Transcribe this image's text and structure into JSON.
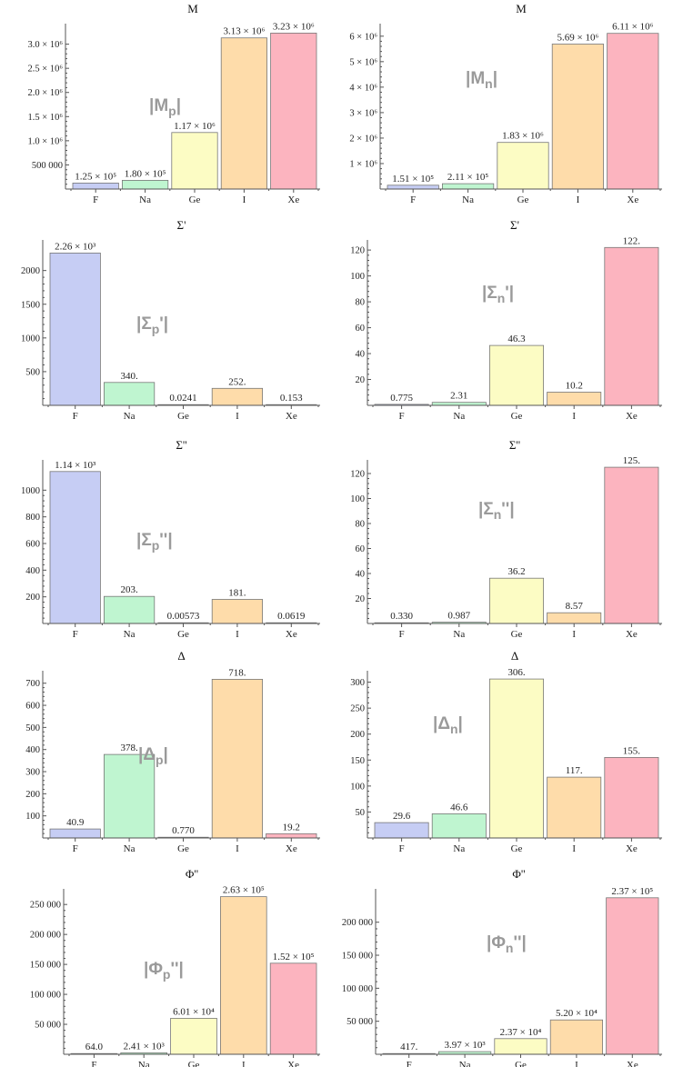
{
  "colors": {
    "F": "#c6cdf4",
    "Na": "#bff5d0",
    "Ge": "#fcfcc4",
    "I": "#fedcaa",
    "Xe": "#fcb4bf"
  },
  "chart_data": [
    {
      "type": "bar",
      "title": "M",
      "inset": {
        "main": "|M",
        "sub": "p",
        "end": "|"
      },
      "categories": [
        "F",
        "Na",
        "Ge",
        "I",
        "Xe"
      ],
      "values": [
        125000,
        180000,
        1170000,
        3130000,
        3230000
      ],
      "labels": [
        "1.25 × 10⁵",
        "1.80 × 10⁵",
        "1.17 × 10⁶",
        "3.13 × 10⁶",
        "3.23 × 10⁶"
      ],
      "ylim": [
        0,
        3350000
      ],
      "yticks": [
        500000,
        1000000,
        1500000,
        2000000,
        2500000,
        3000000
      ],
      "ytick_labels": [
        "500 000",
        "1.0 × 10⁶",
        "1.5 × 10⁶",
        "2.0 × 10⁶",
        "2.5 × 10⁶",
        "3.0 × 10⁶"
      ]
    },
    {
      "type": "bar",
      "title": "M",
      "inset": {
        "main": "|M",
        "sub": "n",
        "end": "|"
      },
      "categories": [
        "F",
        "Na",
        "Ge",
        "I",
        "Xe"
      ],
      "values": [
        151000,
        211000,
        1830000,
        5690000,
        6110000
      ],
      "labels": [
        "1.51 × 10⁵",
        "2.11 × 10⁵",
        "1.83 × 10⁶",
        "5.69 × 10⁶",
        "6.11 × 10⁶"
      ],
      "ylim": [
        0,
        6350000
      ],
      "yticks": [
        1000000,
        2000000,
        3000000,
        4000000,
        5000000,
        6000000
      ],
      "ytick_labels": [
        "1 × 10⁶",
        "2 × 10⁶",
        "3 × 10⁶",
        "4 × 10⁶",
        "5 × 10⁶",
        "6 × 10⁶"
      ]
    },
    {
      "type": "bar",
      "title": "Σ'",
      "inset": {
        "main": "|Σ",
        "sub": "p",
        "end": "'|"
      },
      "categories": [
        "F",
        "Na",
        "Ge",
        "I",
        "Xe"
      ],
      "values": [
        2260,
        340,
        0.0241,
        252,
        0.153
      ],
      "labels": [
        "2.26 × 10³",
        "340.",
        "0.0241",
        "252.",
        "0.153"
      ],
      "ylim": [
        0,
        2400
      ],
      "yticks": [
        500,
        1000,
        1500,
        2000
      ],
      "ytick_labels": [
        "500",
        "1000",
        "1500",
        "2000"
      ]
    },
    {
      "type": "bar",
      "title": "Σ'",
      "inset": {
        "main": "|Σ",
        "sub": "n",
        "end": "'|"
      },
      "categories": [
        "F",
        "Na",
        "Ge",
        "I",
        "Xe"
      ],
      "values": [
        0.775,
        2.31,
        46.3,
        10.2,
        122
      ],
      "labels": [
        "0.775",
        "2.31",
        "46.3",
        "10.2",
        "122."
      ],
      "ylim": [
        0,
        125
      ],
      "yticks": [
        20,
        40,
        60,
        80,
        100,
        120
      ],
      "ytick_labels": [
        "20",
        "40",
        "60",
        "80",
        "100",
        "120"
      ]
    },
    {
      "type": "bar",
      "title": "Σ''",
      "inset": {
        "main": "|Σ",
        "sub": "p",
        "end": "''|"
      },
      "categories": [
        "F",
        "Na",
        "Ge",
        "I",
        "Xe"
      ],
      "values": [
        1140,
        203,
        0.00573,
        181,
        0.0619
      ],
      "labels": [
        "1.14 × 10³",
        "203.",
        "0.00573",
        "181.",
        "0.0619"
      ],
      "ylim": [
        0,
        1200
      ],
      "yticks": [
        200,
        400,
        600,
        800,
        1000
      ],
      "ytick_labels": [
        "200",
        "400",
        "600",
        "800",
        "1000"
      ]
    },
    {
      "type": "bar",
      "title": "Σ''",
      "inset": {
        "main": "|Σ",
        "sub": "n",
        "end": "''|"
      },
      "categories": [
        "F",
        "Na",
        "Ge",
        "I",
        "Xe"
      ],
      "values": [
        0.33,
        0.987,
        36.2,
        8.57,
        125
      ],
      "labels": [
        "0.330",
        "0.987",
        "36.2",
        "8.57",
        "125."
      ],
      "ylim": [
        0,
        128
      ],
      "yticks": [
        20,
        40,
        60,
        80,
        100,
        120
      ],
      "ytick_labels": [
        "20",
        "40",
        "60",
        "80",
        "100",
        "120"
      ]
    },
    {
      "type": "bar",
      "title": "Δ",
      "inset": {
        "main": "|Δ",
        "sub": "p",
        "end": "|"
      },
      "categories": [
        "F",
        "Na",
        "Ge",
        "I",
        "Xe"
      ],
      "values": [
        40.9,
        378,
        0.77,
        718,
        19.2
      ],
      "labels": [
        "40.9",
        "378.",
        "0.770",
        "718.",
        "19.2"
      ],
      "ylim": [
        0,
        740
      ],
      "yticks": [
        100,
        200,
        300,
        400,
        500,
        600,
        700
      ],
      "ytick_labels": [
        "100",
        "200",
        "300",
        "400",
        "500",
        "600",
        "700"
      ]
    },
    {
      "type": "bar",
      "title": "Δ",
      "inset": {
        "main": "|Δ",
        "sub": "n",
        "end": "|"
      },
      "categories": [
        "F",
        "Na",
        "Ge",
        "I",
        "Xe"
      ],
      "values": [
        29.6,
        46.6,
        306,
        117,
        155
      ],
      "labels": [
        "29.6",
        "46.6",
        "306.",
        "117.",
        "155."
      ],
      "ylim": [
        0,
        315
      ],
      "yticks": [
        50,
        100,
        150,
        200,
        250,
        300
      ],
      "ytick_labels": [
        "50",
        "100",
        "150",
        "200",
        "250",
        "300"
      ]
    },
    {
      "type": "bar",
      "title": "Φ''",
      "inset": {
        "main": "|Φ",
        "sub": "p",
        "end": "''|"
      },
      "categories": [
        "F",
        "Na",
        "Ge",
        "I",
        "Xe"
      ],
      "values": [
        64.0,
        2410,
        60100,
        263000,
        152000
      ],
      "labels": [
        "64.0",
        "2.41 × 10³",
        "6.01 × 10⁴",
        "2.63 × 10⁵",
        "1.52 × 10⁵"
      ],
      "ylim": [
        0,
        270000
      ],
      "yticks": [
        50000,
        100000,
        150000,
        200000,
        250000
      ],
      "ytick_labels": [
        "50 000",
        "100 000",
        "150 000",
        "200 000",
        "250 000"
      ]
    },
    {
      "type": "bar",
      "title": "Φ''",
      "inset": {
        "main": "|Φ",
        "sub": "n",
        "end": "''|"
      },
      "categories": [
        "F",
        "Na",
        "Ge",
        "I",
        "Xe"
      ],
      "values": [
        417,
        3970,
        23700,
        52000,
        237000
      ],
      "labels": [
        "417.",
        "3.97 × 10³",
        "2.37 × 10⁴",
        "5.20 × 10⁴",
        "2.37 × 10⁵"
      ],
      "ylim": [
        0,
        245000
      ],
      "yticks": [
        50000,
        100000,
        150000,
        200000
      ],
      "ytick_labels": [
        "50 000",
        "100 000",
        "150 000",
        "200 000"
      ]
    }
  ]
}
